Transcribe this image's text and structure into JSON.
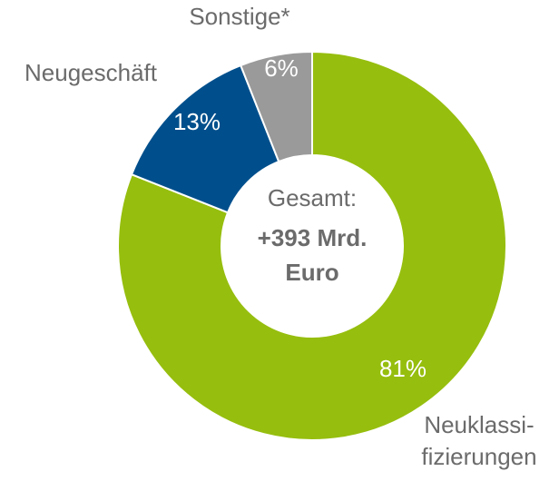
{
  "chart_data": {
    "type": "donut",
    "categories": [
      "Neuklassi-\nfizierungen",
      "Neugeschäft",
      "Sonstige*"
    ],
    "values": [
      81,
      13,
      6
    ],
    "value_labels": [
      "81%",
      "13%",
      "6%"
    ],
    "colors": [
      "#96be0e",
      "#004f8c",
      "#9a9a9a"
    ],
    "center_text": [
      "Gesamt:",
      "+393 Mrd.",
      "Euro"
    ]
  }
}
